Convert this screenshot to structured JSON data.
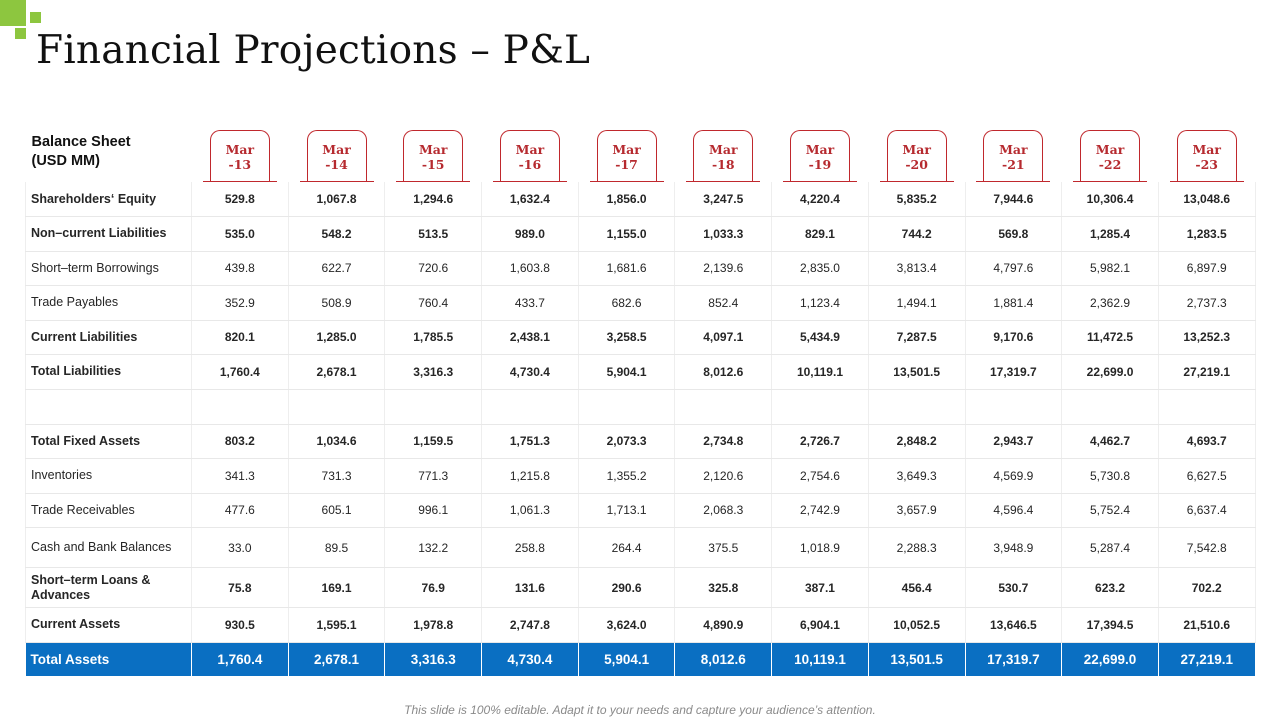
{
  "title": "Financial Projections – P&L",
  "table": {
    "corner_label_line1": "Balance Sheet",
    "corner_label_line2": "(USD MM)",
    "periods": [
      {
        "line1": "Mar",
        "line2": "-13"
      },
      {
        "line1": "Mar",
        "line2": "-14"
      },
      {
        "line1": "Mar",
        "line2": "-15"
      },
      {
        "line1": "Mar",
        "line2": "-16"
      },
      {
        "line1": "Mar",
        "line2": "-17"
      },
      {
        "line1": "Mar",
        "line2": "-18"
      },
      {
        "line1": "Mar",
        "line2": "-19"
      },
      {
        "line1": "Mar",
        "line2": "-20"
      },
      {
        "line1": "Mar",
        "line2": "-21"
      },
      {
        "line1": "Mar",
        "line2": "-22"
      },
      {
        "line1": "Mar",
        "line2": "-23"
      }
    ],
    "rows": [
      {
        "label": "Shareholders‘ Equity",
        "bold": true,
        "values": [
          "529.8",
          "1,067.8",
          "1,294.6",
          "1,632.4",
          "1,856.0",
          "3,247.5",
          "4,220.4",
          "5,835.2",
          "7,944.6",
          "10,306.4",
          "13,048.6"
        ]
      },
      {
        "label": "Non–current Liabilities",
        "bold": true,
        "values": [
          "535.0",
          "548.2",
          "513.5",
          "989.0",
          "1,155.0",
          "1,033.3",
          "829.1",
          "744.2",
          "569.8",
          "1,285.4",
          "1,283.5"
        ]
      },
      {
        "label": "Short–term Borrowings",
        "bold": false,
        "values": [
          "439.8",
          "622.7",
          "720.6",
          "1,603.8",
          "1,681.6",
          "2,139.6",
          "2,835.0",
          "3,813.4",
          "4,797.6",
          "5,982.1",
          "6,897.9"
        ]
      },
      {
        "label": "Trade  Payables",
        "bold": false,
        "values": [
          "352.9",
          "508.9",
          "760.4",
          "433.7",
          "682.6",
          "852.4",
          "1,123.4",
          "1,494.1",
          "1,881.4",
          "2,362.9",
          "2,737.3"
        ]
      },
      {
        "label": "Current Liabilities",
        "bold": true,
        "values": [
          "820.1",
          "1,285.0",
          "1,785.5",
          "2,438.1",
          "3,258.5",
          "4,097.1",
          "5,434.9",
          "7,287.5",
          "9,170.6",
          "11,472.5",
          "13,252.3"
        ]
      },
      {
        "label": "Total Liabilities",
        "bold": true,
        "values": [
          "1,760.4",
          "2,678.1",
          "3,316.3",
          "4,730.4",
          "5,904.1",
          "8,012.6",
          "10,119.1",
          "13,501.5",
          "17,319.7",
          "22,699.0",
          "27,219.1"
        ]
      },
      {
        "blank": true
      },
      {
        "label": "Total Fixed Assets",
        "bold": true,
        "values": [
          "803.2",
          "1,034.6",
          "1,159.5",
          "1,751.3",
          "2,073.3",
          "2,734.8",
          "2,726.7",
          "2,848.2",
          "2,943.7",
          "4,462.7",
          "4,693.7"
        ]
      },
      {
        "label": "Inventories",
        "bold": false,
        "values": [
          "341.3",
          "731.3",
          "771.3",
          "1,215.8",
          "1,355.2",
          "2,120.6",
          "2,754.6",
          "3,649.3",
          "4,569.9",
          "5,730.8",
          "6,627.5"
        ]
      },
      {
        "label": "Trade  Receivables",
        "bold": false,
        "values": [
          "477.6",
          "605.1",
          "996.1",
          "1,061.3",
          "1,713.1",
          "2,068.3",
          "2,742.9",
          "3,657.9",
          "4,596.4",
          "5,752.4",
          "6,637.4"
        ]
      },
      {
        "label": "Cash and Bank Balances",
        "bold": false,
        "tall": true,
        "values": [
          "33.0",
          "89.5",
          "132.2",
          "258.8",
          "264.4",
          "375.5",
          "1,018.9",
          "2,288.3",
          "3,948.9",
          "5,287.4",
          "7,542.8"
        ]
      },
      {
        "label": "Short–term Loans & Advances",
        "bold": true,
        "tall": true,
        "values": [
          "75.8",
          "169.1",
          "76.9",
          "131.6",
          "290.6",
          "325.8",
          "387.1",
          "456.4",
          "530.7",
          "623.2",
          "702.2"
        ]
      },
      {
        "label": "Current Assets",
        "bold": true,
        "values": [
          "930.5",
          "1,595.1",
          "1,978.8",
          "2,747.8",
          "3,624.0",
          "4,890.9",
          "6,904.1",
          "10,052.5",
          "13,646.5",
          "17,394.5",
          "21,510.6"
        ]
      }
    ],
    "total_row": {
      "label": "Total Assets",
      "values": [
        "1,760.4",
        "2,678.1",
        "3,316.3",
        "4,730.4",
        "5,904.1",
        "8,012.6",
        "10,119.1",
        "13,501.5",
        "17,319.7",
        "22,699.0",
        "27,219.1"
      ]
    }
  },
  "footer": "This slide is 100% editable. Adapt it to your needs and capture your audience’s attention.",
  "colors": {
    "accent_green": "#8dc63f",
    "header_red": "#c0282d",
    "total_blue": "#0a6fc2"
  }
}
